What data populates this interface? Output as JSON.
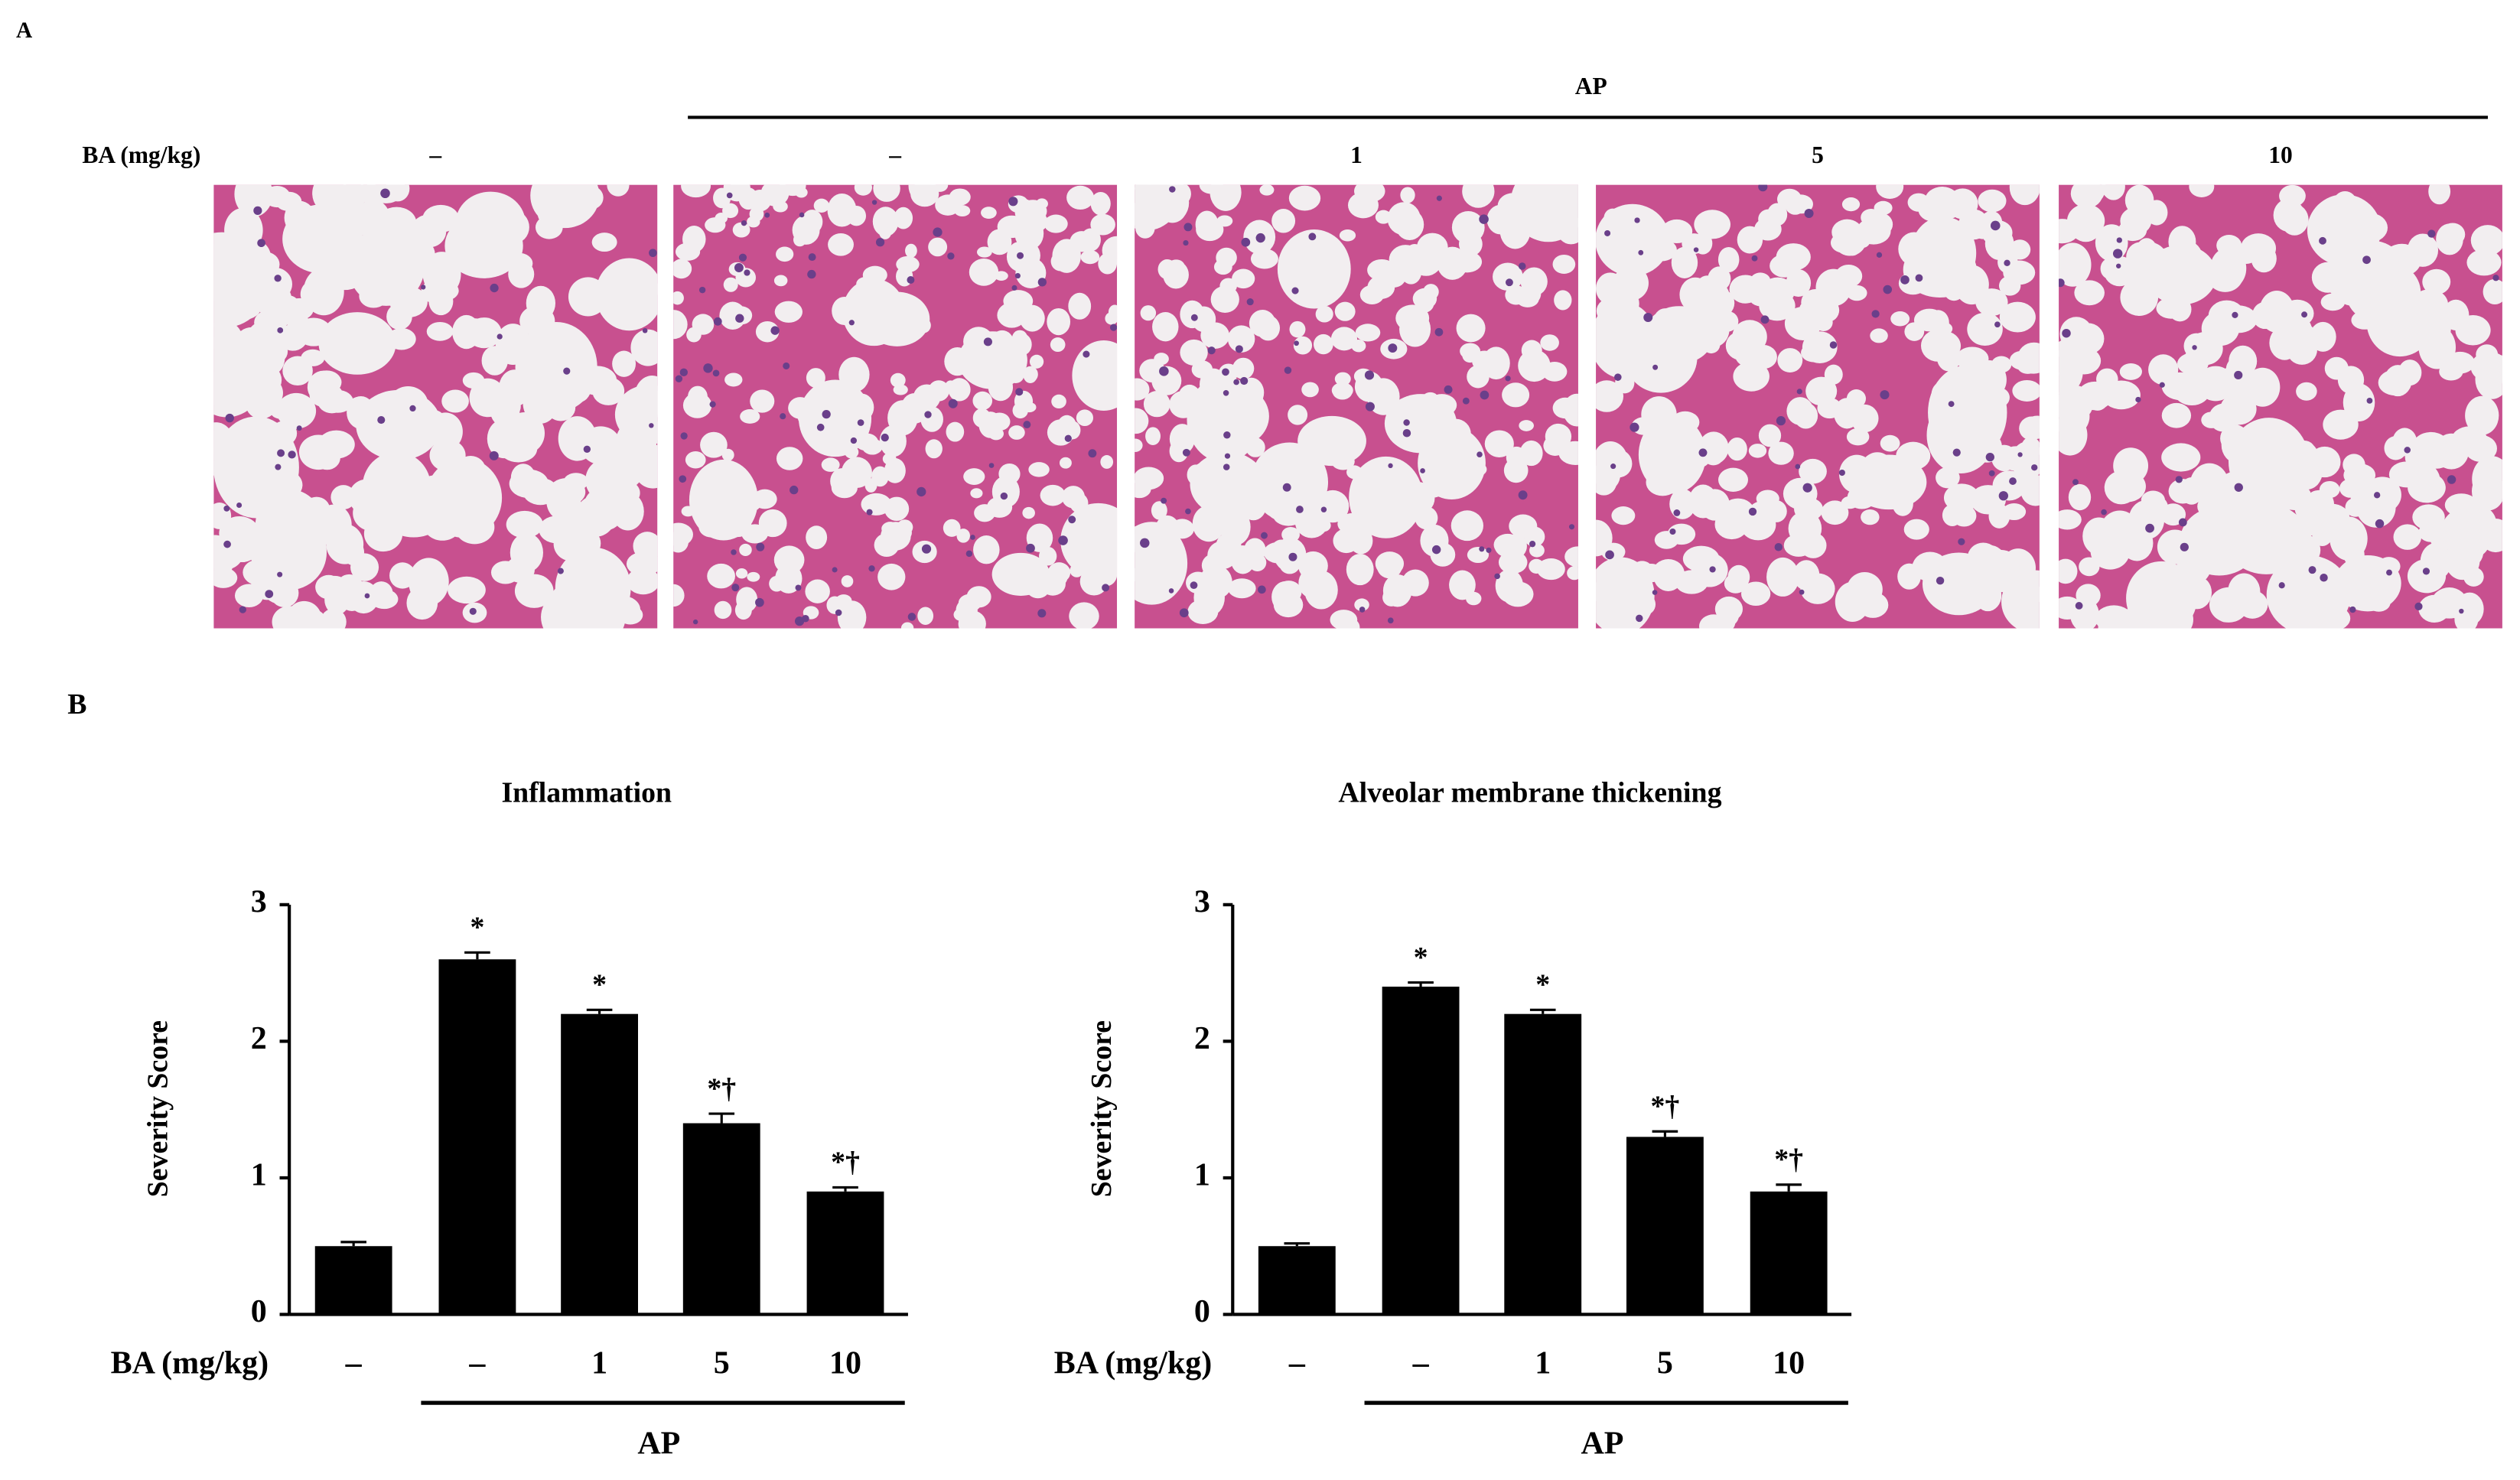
{
  "figure": {
    "panel_a": {
      "label": "A",
      "group": "AP",
      "dose_title": "BA (mg/kg)",
      "doses": [
        "–",
        "–",
        "1",
        "5",
        "10"
      ]
    },
    "panel_b": {
      "label": "B"
    }
  },
  "chart_data": [
    {
      "type": "bar",
      "title": "Inflammation",
      "y_label": "Severity Score",
      "x_label": "BA (mg/kg)",
      "group": "AP",
      "categories": [
        "–",
        "–",
        "1",
        "5",
        "10"
      ],
      "values": [
        0.5,
        2.6,
        2.2,
        1.4,
        0.9
      ],
      "errors": [
        0.03,
        0.05,
        0.03,
        0.07,
        0.03
      ],
      "annotations": [
        null,
        "*",
        "*",
        "*†",
        "*†"
      ],
      "color": "#000000",
      "ylim": [
        0,
        3
      ],
      "yticks": [
        0,
        1,
        2,
        3
      ]
    },
    {
      "type": "bar",
      "title": "Alveolar  membrane  thickening",
      "y_label": "Severity Score",
      "x_label": "BA (mg/kg)",
      "group": "AP",
      "categories": [
        "–",
        "–",
        "1",
        "5",
        "10"
      ],
      "values": [
        0.5,
        2.4,
        2.2,
        1.3,
        0.9
      ],
      "errors": [
        0.02,
        0.03,
        0.03,
        0.04,
        0.05
      ],
      "annotations": [
        null,
        "*",
        "*",
        "*†",
        "*†"
      ],
      "color": "#000000",
      "ylim": [
        0,
        3
      ],
      "yticks": [
        0,
        1,
        2,
        3
      ]
    }
  ]
}
